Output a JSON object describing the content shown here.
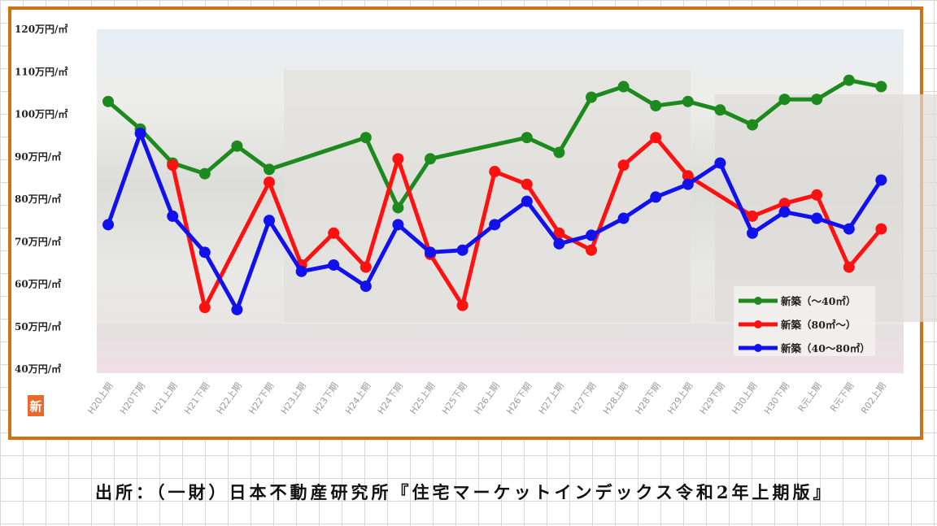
{
  "chart_data": {
    "type": "line",
    "ylim": [
      40,
      120
    ],
    "y_ticks": [
      "40万円/㎡",
      "50万円/㎡",
      "60万円/㎡",
      "70万円/㎡",
      "80万円/㎡",
      "90万円/㎡",
      "100万円/㎡",
      "110万円/㎡",
      "120万円/㎡"
    ],
    "categories": [
      "H20上期",
      "H20下期",
      "H21上期",
      "H21下期",
      "H22上期",
      "H22下期",
      "H23上期",
      "H23下期",
      "H24上期",
      "H24下期",
      "H25上期",
      "H25下期",
      "H26上期",
      "H26下期",
      "H27上期",
      "H27下期",
      "H28上期",
      "H28下期",
      "H29上期",
      "H29下期",
      "H30上期",
      "H30下期",
      "R元上期",
      "R元下期",
      "R02上期"
    ],
    "legend_position": "bottom-right",
    "grid": false,
    "series": [
      {
        "name": "新築（～40㎡）",
        "color": "#1d8a1d",
        "values": [
          103,
          96.5,
          88.5,
          86,
          92.5,
          87,
          null,
          null,
          94.5,
          78,
          89.5,
          null,
          null,
          94.5,
          91,
          104,
          106.5,
          102,
          103,
          101,
          97.5,
          103.5,
          103.5,
          108,
          106.5
        ]
      },
      {
        "name": "新築（80㎡～）",
        "color": "#ff1111",
        "values": [
          null,
          null,
          88,
          54.5,
          null,
          84,
          64.5,
          72,
          64,
          89.5,
          67,
          55,
          86.5,
          83.5,
          72,
          68,
          88,
          94.5,
          85.5,
          null,
          76,
          79,
          81,
          64,
          73
        ]
      },
      {
        "name": "新築（40～80㎡）",
        "color": "#1111ee",
        "values": [
          74,
          95.5,
          76,
          67.5,
          54,
          75,
          63,
          64.5,
          59.5,
          74,
          67.5,
          68,
          74,
          79.5,
          69.5,
          71.5,
          75.5,
          80.5,
          83.5,
          88.5,
          72,
          77,
          75.5,
          73,
          84.5
        ]
      }
    ]
  },
  "badge": "新",
  "source": "出所：（一財）日本不動産研究所『住宅マーケットインデックス令和2年上期版』"
}
